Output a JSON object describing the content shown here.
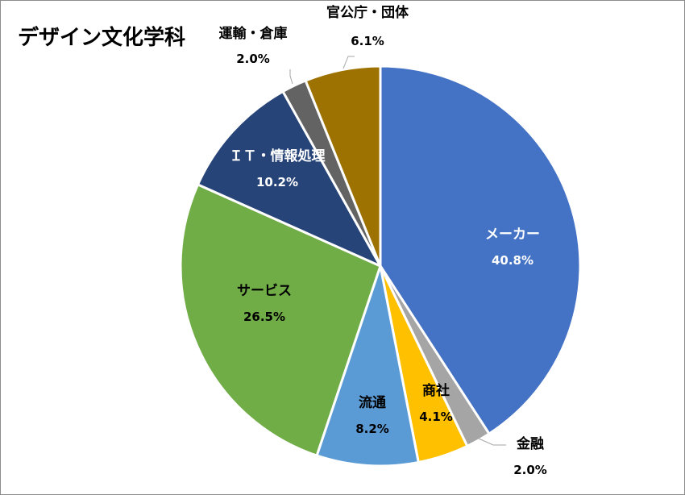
{
  "chart_data": {
    "type": "pie",
    "title": "デザイン文化学科",
    "start": "12 o'clock, clockwise",
    "slices": [
      {
        "label": "メーカー",
        "value_label": "40.8%",
        "value": 40.8,
        "color": "#4472c4",
        "label_color": "#ffffff"
      },
      {
        "label": "金融",
        "value_label": "2.0%",
        "value": 2.0,
        "color": "#a5a5a5",
        "label_color": "#000000"
      },
      {
        "label": "商社",
        "value_label": "4.1%",
        "value": 4.1,
        "color": "#ffc000",
        "label_color": "#000000"
      },
      {
        "label": "流通",
        "value_label": "8.2%",
        "value": 8.2,
        "color": "#5b9bd5",
        "label_color": "#000000"
      },
      {
        "label": "サービス",
        "value_label": "26.5%",
        "value": 26.5,
        "color": "#70ad47",
        "label_color": "#000000"
      },
      {
        "label": "ＩＴ・情報処理",
        "value_label": "10.2%",
        "value": 10.2,
        "color": "#264478",
        "label_color": "#ffffff"
      },
      {
        "label": "運輸・倉庫",
        "value_label": "2.0%",
        "value": 2.0,
        "color": "#636363",
        "label_color": "#000000"
      },
      {
        "label": "官公庁・団体",
        "value_label": "6.1%",
        "value": 6.1,
        "color": "#9e7200",
        "label_color": "#000000"
      }
    ]
  }
}
